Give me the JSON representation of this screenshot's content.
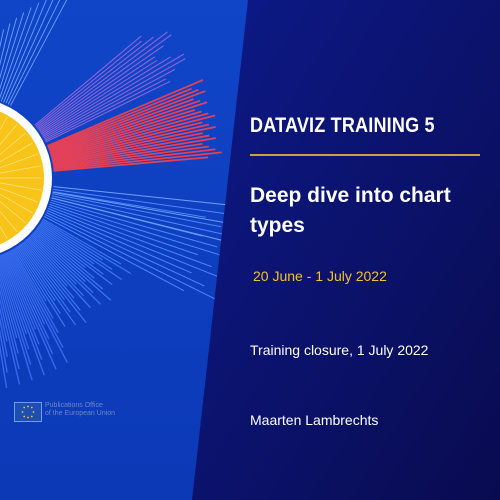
{
  "slide": {
    "eyebrow": "DATAVIZ TRAINING 5",
    "title": "Deep dive into chart types",
    "dates": "20 June - 1 July 2022",
    "closure": "Training closure, 1 July 2022",
    "author": "Maarten Lambrechts"
  },
  "logo": {
    "line1": "Publications Office",
    "line2": "of the European Union",
    "icon": "eu-flag-icon"
  },
  "colors": {
    "bg_left": "#0b3fc4",
    "bg_right": "#0b0f62",
    "accent_red": "#e14159",
    "accent_yellow": "#f6c12b",
    "rule": "#c9a43a"
  }
}
